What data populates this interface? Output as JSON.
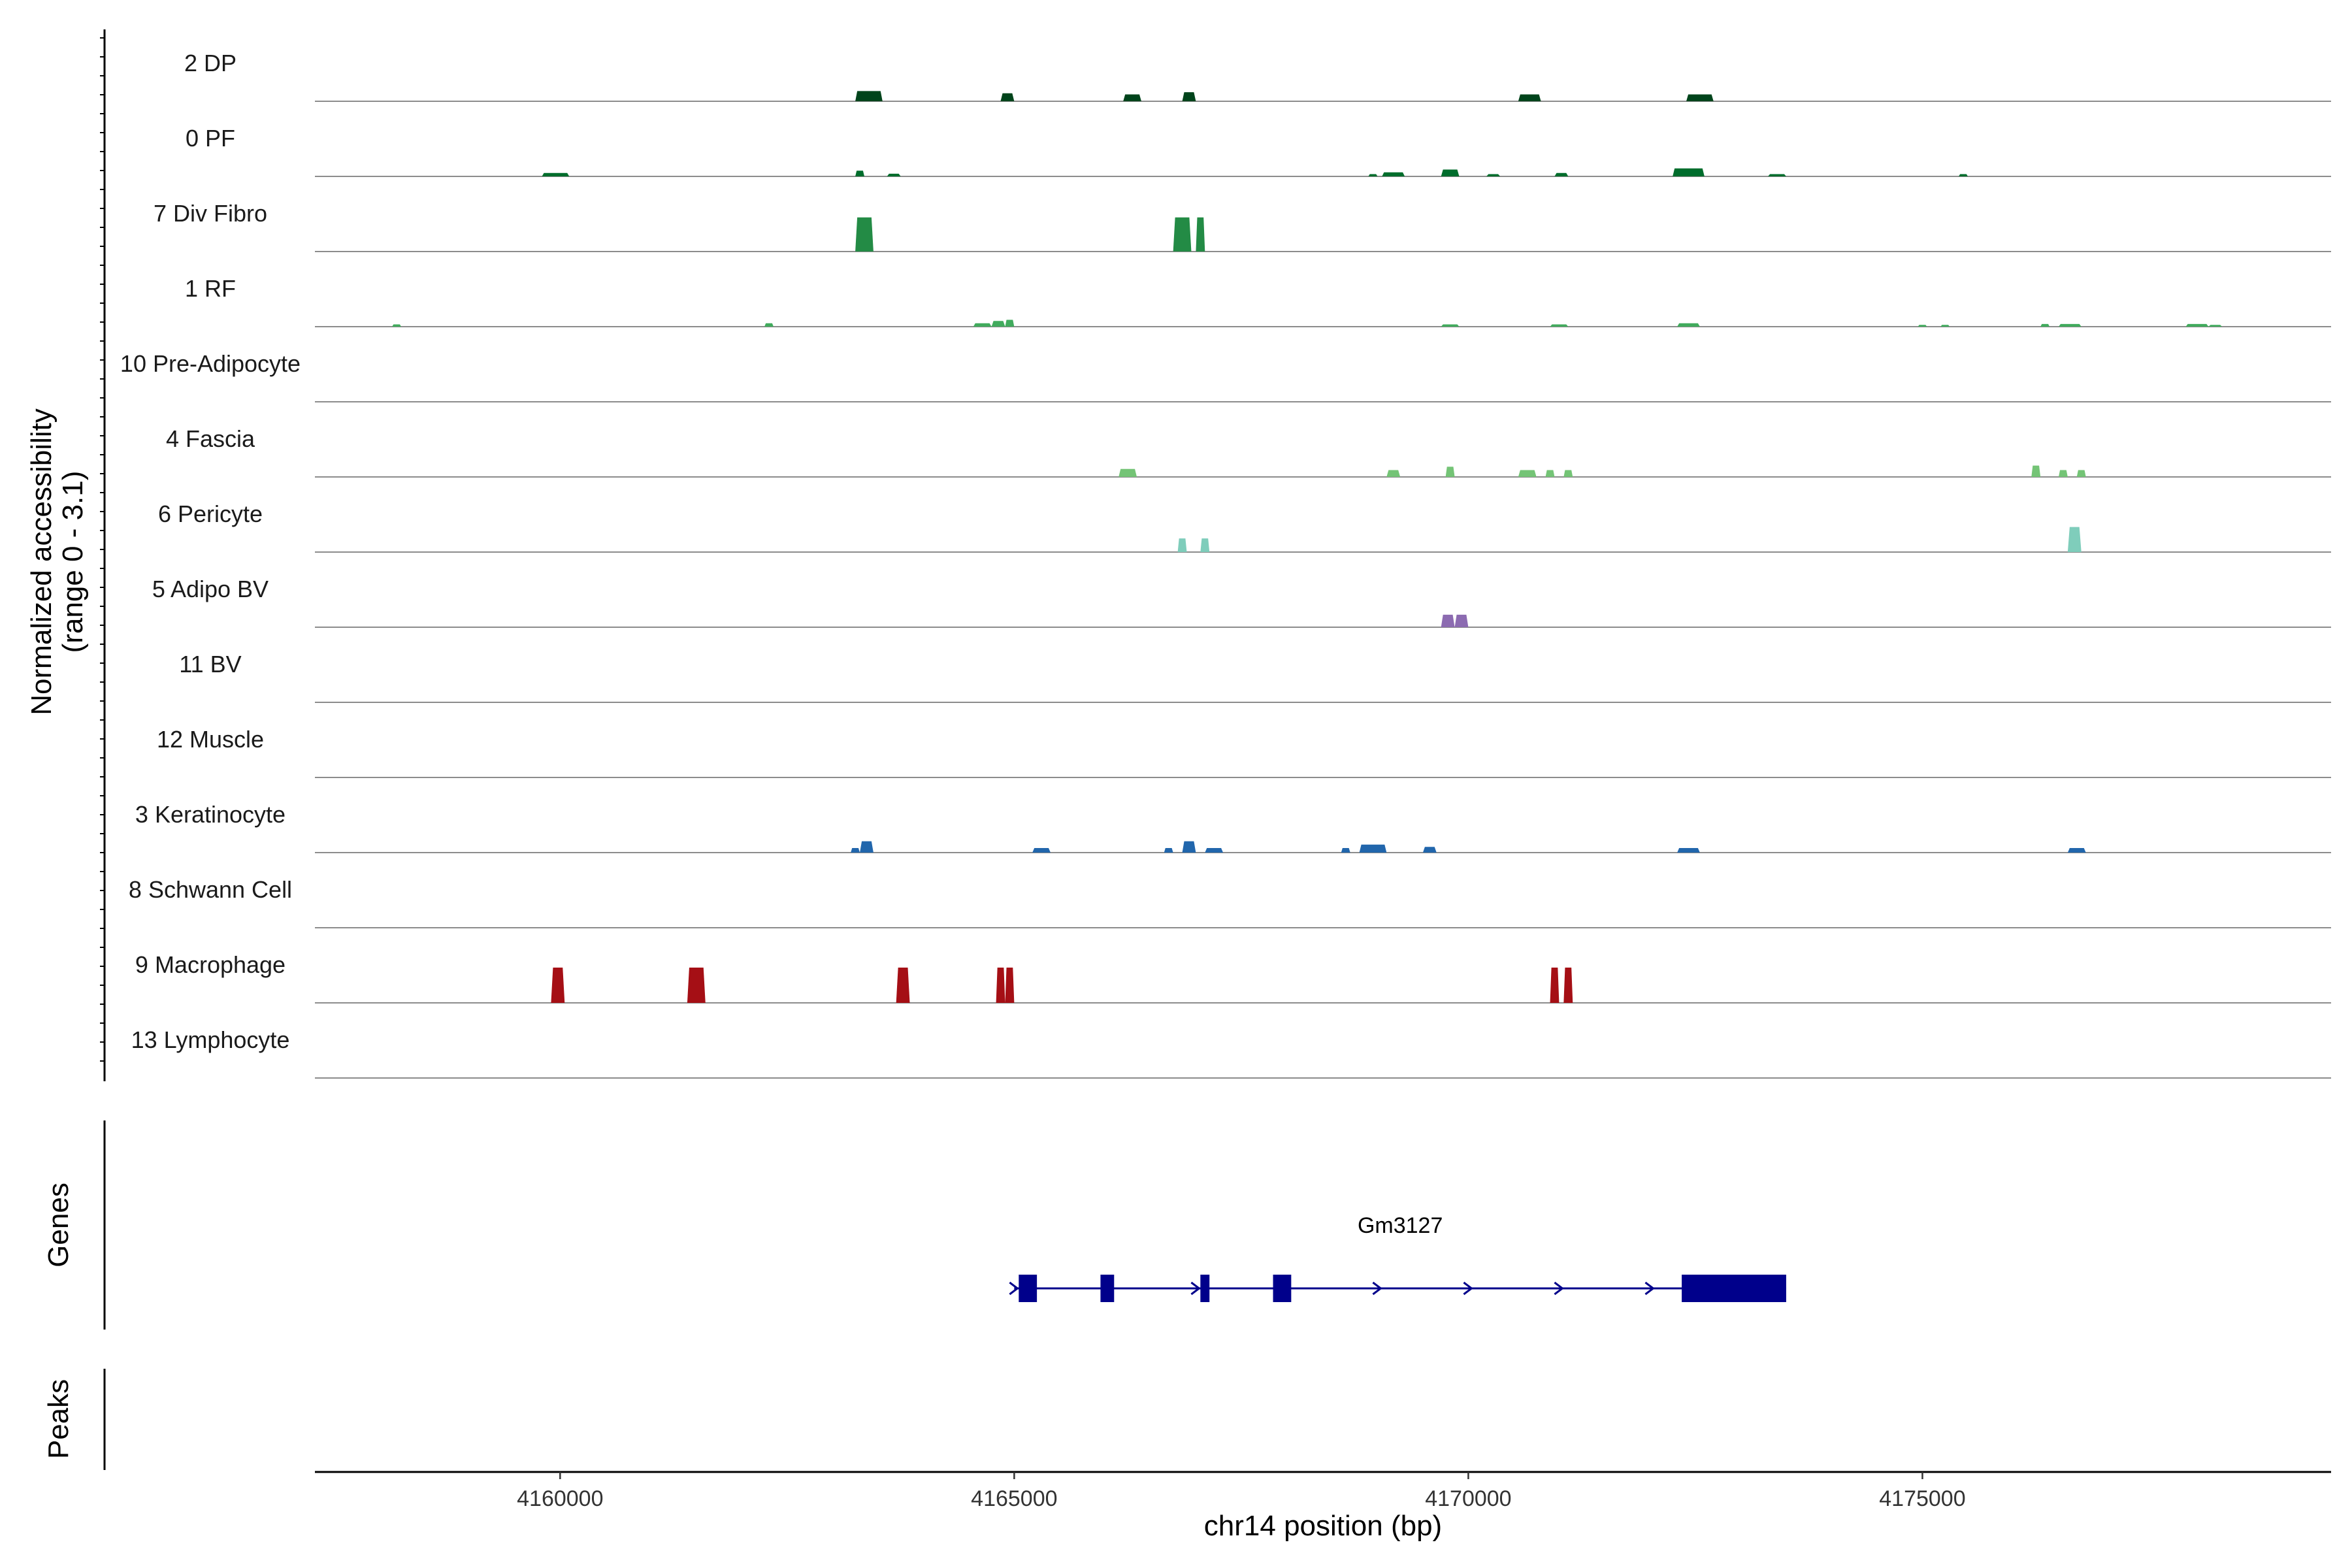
{
  "chart_data": {
    "type": "coverage-track",
    "region": "chr14",
    "xlabel": "chr14 position (bp)",
    "ylabel_line1": "Normalized accessibility",
    "ylabel_line2": "(range 0 - 3.1)",
    "xlim": [
      4157300,
      4179500
    ],
    "xticks": [
      4160000,
      4165000,
      4170000,
      4175000
    ],
    "xtick_labels": [
      "4160000",
      "4165000",
      "4170000",
      "4175000"
    ],
    "ylim": [
      0,
      3.1
    ],
    "tracks": [
      {
        "name": "2 DP",
        "color": "#00441B",
        "peaks": [
          {
            "start": 4163250,
            "end": 4163550,
            "value": 0.45
          },
          {
            "start": 4164850,
            "end": 4165000,
            "value": 0.35
          },
          {
            "start": 4166200,
            "end": 4166400,
            "value": 0.3
          },
          {
            "start": 4166850,
            "end": 4167000,
            "value": 0.4
          },
          {
            "start": 4170550,
            "end": 4170800,
            "value": 0.3
          },
          {
            "start": 4172400,
            "end": 4172700,
            "value": 0.3
          }
        ]
      },
      {
        "name": "0 PF",
        "color": "#006D2C",
        "peaks": [
          {
            "start": 4159800,
            "end": 4160100,
            "value": 0.15
          },
          {
            "start": 4163250,
            "end": 4163350,
            "value": 0.25
          },
          {
            "start": 4163600,
            "end": 4163750,
            "value": 0.12
          },
          {
            "start": 4168900,
            "end": 4169000,
            "value": 0.1
          },
          {
            "start": 4169050,
            "end": 4169300,
            "value": 0.18
          },
          {
            "start": 4169700,
            "end": 4169900,
            "value": 0.3
          },
          {
            "start": 4170200,
            "end": 4170350,
            "value": 0.1
          },
          {
            "start": 4170950,
            "end": 4171100,
            "value": 0.15
          },
          {
            "start": 4172250,
            "end": 4172600,
            "value": 0.35
          },
          {
            "start": 4173300,
            "end": 4173500,
            "value": 0.1
          },
          {
            "start": 4175400,
            "end": 4175500,
            "value": 0.1
          }
        ]
      },
      {
        "name": "7 Div Fibro",
        "color": "#238B45",
        "peaks": [
          {
            "start": 4163250,
            "end": 4163450,
            "value": 1.5
          },
          {
            "start": 4166750,
            "end": 4166950,
            "value": 1.5
          },
          {
            "start": 4167000,
            "end": 4167100,
            "value": 1.5
          }
        ]
      },
      {
        "name": "1 RF",
        "color": "#41AB5D",
        "peaks": [
          {
            "start": 4158150,
            "end": 4158250,
            "value": 0.1
          },
          {
            "start": 4162250,
            "end": 4162350,
            "value": 0.15
          },
          {
            "start": 4164550,
            "end": 4164750,
            "value": 0.15
          },
          {
            "start": 4164750,
            "end": 4164900,
            "value": 0.25
          },
          {
            "start": 4164900,
            "end": 4165000,
            "value": 0.3
          },
          {
            "start": 4169700,
            "end": 4169900,
            "value": 0.1
          },
          {
            "start": 4170900,
            "end": 4171100,
            "value": 0.1
          },
          {
            "start": 4172300,
            "end": 4172550,
            "value": 0.15
          },
          {
            "start": 4174950,
            "end": 4175050,
            "value": 0.08
          },
          {
            "start": 4175200,
            "end": 4175300,
            "value": 0.08
          },
          {
            "start": 4176300,
            "end": 4176400,
            "value": 0.12
          },
          {
            "start": 4176500,
            "end": 4176750,
            "value": 0.12
          },
          {
            "start": 4177900,
            "end": 4178150,
            "value": 0.12
          },
          {
            "start": 4178150,
            "end": 4178300,
            "value": 0.08
          }
        ]
      },
      {
        "name": "10 Pre-Adipocyte",
        "color": "#74C476",
        "peaks": []
      },
      {
        "name": "4 Fascia",
        "color": "#74C476",
        "peaks": [
          {
            "start": 4166150,
            "end": 4166350,
            "value": 0.35
          },
          {
            "start": 4169100,
            "end": 4169250,
            "value": 0.3
          },
          {
            "start": 4169750,
            "end": 4169850,
            "value": 0.45
          },
          {
            "start": 4170550,
            "end": 4170750,
            "value": 0.3
          },
          {
            "start": 4170850,
            "end": 4170950,
            "value": 0.3
          },
          {
            "start": 4171050,
            "end": 4171150,
            "value": 0.3
          },
          {
            "start": 4176200,
            "end": 4176300,
            "value": 0.5
          },
          {
            "start": 4176500,
            "end": 4176600,
            "value": 0.3
          },
          {
            "start": 4176700,
            "end": 4176800,
            "value": 0.3
          }
        ]
      },
      {
        "name": "6 Pericyte",
        "color": "#7FCDBB",
        "peaks": [
          {
            "start": 4166800,
            "end": 4166900,
            "value": 0.6
          },
          {
            "start": 4167050,
            "end": 4167150,
            "value": 0.6
          },
          {
            "start": 4176600,
            "end": 4176750,
            "value": 1.1
          }
        ]
      },
      {
        "name": "5 Adipo BV",
        "color": "#8C6BB1",
        "peaks": [
          {
            "start": 4169700,
            "end": 4169850,
            "value": 0.55
          },
          {
            "start": 4169850,
            "end": 4170000,
            "value": 0.55
          }
        ]
      },
      {
        "name": "11 BV",
        "color": "#8C6BB1",
        "peaks": []
      },
      {
        "name": "12 Muscle",
        "color": "#2171B5",
        "peaks": []
      },
      {
        "name": "3 Keratinocyte",
        "color": "#2166AC",
        "peaks": [
          {
            "start": 4163200,
            "end": 4163300,
            "value": 0.2
          },
          {
            "start": 4163300,
            "end": 4163450,
            "value": 0.5
          },
          {
            "start": 4165200,
            "end": 4165400,
            "value": 0.2
          },
          {
            "start": 4166650,
            "end": 4166750,
            "value": 0.2
          },
          {
            "start": 4166850,
            "end": 4167000,
            "value": 0.5
          },
          {
            "start": 4167100,
            "end": 4167300,
            "value": 0.2
          },
          {
            "start": 4168600,
            "end": 4168700,
            "value": 0.2
          },
          {
            "start": 4168800,
            "end": 4169100,
            "value": 0.35
          },
          {
            "start": 4169500,
            "end": 4169650,
            "value": 0.25
          },
          {
            "start": 4172300,
            "end": 4172550,
            "value": 0.2
          },
          {
            "start": 4176600,
            "end": 4176800,
            "value": 0.2
          }
        ]
      },
      {
        "name": "8 Schwann Cell",
        "color": "#2166AC",
        "peaks": []
      },
      {
        "name": "9 Macrophage",
        "color": "#A50F15",
        "peaks": [
          {
            "start": 4159900,
            "end": 4160050,
            "value": 1.55
          },
          {
            "start": 4161400,
            "end": 4161600,
            "value": 1.55
          },
          {
            "start": 4163700,
            "end": 4163850,
            "value": 1.55
          },
          {
            "start": 4164800,
            "end": 4164900,
            "value": 1.55
          },
          {
            "start": 4164900,
            "end": 4165000,
            "value": 1.55
          },
          {
            "start": 4170900,
            "end": 4171000,
            "value": 1.55
          },
          {
            "start": 4171050,
            "end": 4171150,
            "value": 1.55
          }
        ]
      },
      {
        "name": "13 Lymphocyte",
        "color": "#A50F15",
        "peaks": []
      }
    ],
    "genes_label": "Genes",
    "peaks_label": "Peaks",
    "gene": {
      "name": "Gm3127",
      "color": "#00008B",
      "start": 4165000,
      "end": 4173500,
      "strand": "+",
      "exons": [
        [
          4165050,
          4165250
        ],
        [
          4165950,
          4166100
        ],
        [
          4167050,
          4167150
        ],
        [
          4167850,
          4168050
        ],
        [
          4172350,
          4173500
        ]
      ],
      "arrows": [
        4165000,
        4167000,
        4169000,
        4170000,
        4171000,
        4172000
      ]
    }
  }
}
